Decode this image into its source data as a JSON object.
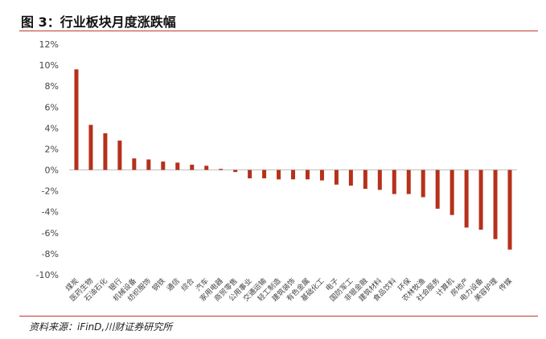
{
  "figure": {
    "title": "图 3：行业板块月度涨跌幅",
    "source": "资料来源：iFinD,川财证券研究所"
  },
  "chart_data": {
    "type": "bar",
    "title": "",
    "xlabel": "",
    "ylabel": "",
    "ylim": [
      -10,
      12
    ],
    "yticks": [
      "12%",
      "10%",
      "8%",
      "6%",
      "4%",
      "2%",
      "0%",
      "-2%",
      "-4%",
      "-6%",
      "-8%",
      "-10%"
    ],
    "grid": false,
    "bar_color": "#b5311b",
    "categories": [
      "煤炭",
      "医药生物",
      "石油石化",
      "银行",
      "机械设备",
      "纺织服饰",
      "钢铁",
      "通信",
      "综合",
      "汽车",
      "家用电器",
      "商贸零售",
      "公用事业",
      "交通运输",
      "轻工制造",
      "建筑装饰",
      "有色金属",
      "基础化工",
      "电子",
      "国防军工",
      "非银金融",
      "建筑材料",
      "食品饮料",
      "环保",
      "农林牧渔",
      "社会服务",
      "计算机",
      "房地产",
      "电力设备",
      "美容护理",
      "传媒"
    ],
    "values": [
      9.6,
      4.3,
      3.5,
      2.8,
      1.1,
      1.0,
      0.8,
      0.7,
      0.5,
      0.4,
      0.1,
      -0.2,
      -0.8,
      -0.8,
      -0.9,
      -0.9,
      -0.9,
      -1.0,
      -1.4,
      -1.5,
      -1.8,
      -1.9,
      -2.3,
      -2.3,
      -2.6,
      -3.7,
      -4.3,
      -5.5,
      -5.7,
      -6.6,
      -7.6
    ]
  }
}
